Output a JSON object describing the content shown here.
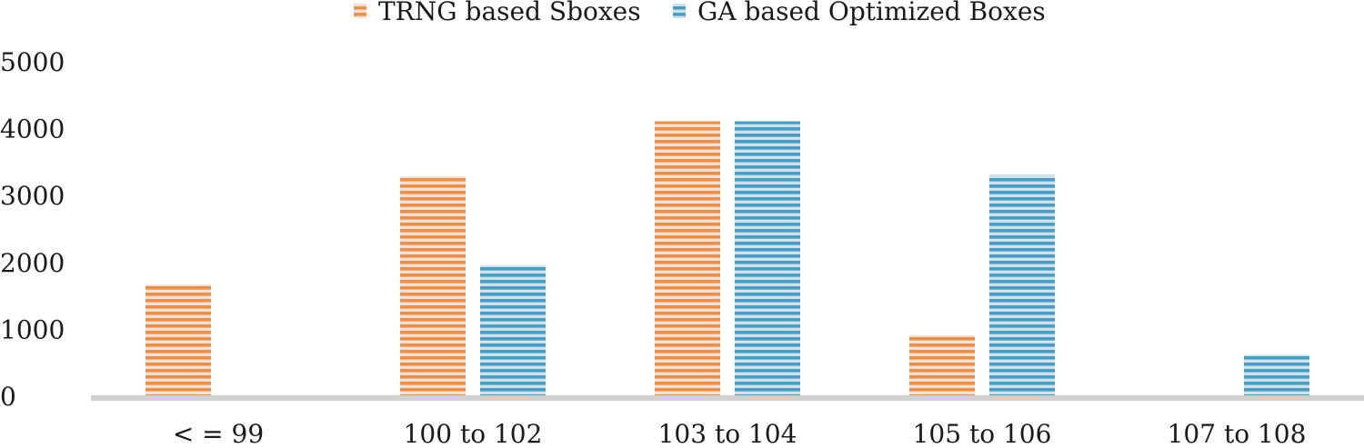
{
  "chart_data": {
    "type": "bar",
    "title": "",
    "xlabel": "",
    "ylabel": "",
    "categories": [
      "< = 99",
      "100 to 102",
      "103 to 104",
      "105 to 106",
      "107 to 108"
    ],
    "series": [
      {
        "name": "TRNG based Sboxes",
        "values": [
          1670,
          3290,
          4110,
          910,
          0
        ],
        "color": "#E8914F"
      },
      {
        "name": "GA based Optimized Boxes",
        "values": [
          0,
          1960,
          4110,
          3310,
          620
        ],
        "color": "#4A9CC0"
      }
    ],
    "ylim": [
      0,
      5000
    ],
    "yticks": [
      0,
      1000,
      2000,
      3000,
      4000,
      5000
    ],
    "grid": false,
    "legend_position": "top-center",
    "bar_texture": "horizontal-stripes"
  }
}
